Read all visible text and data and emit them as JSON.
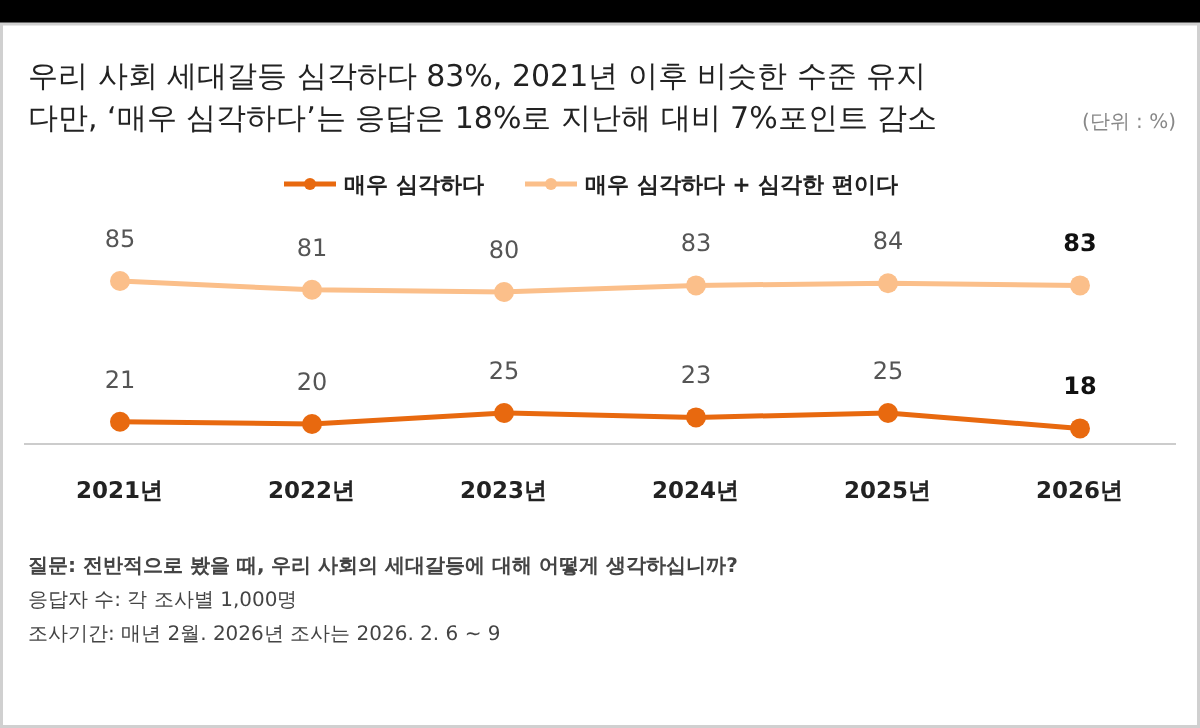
{
  "chart_data": {
    "type": "line",
    "title": "우리 사회 세대갈등 심각하다 83%, 2021년 이후 비슷한 수준 유지",
    "subtitle": "다만, ‘매우 심각하다’는 응답은 18%로 지난해 대비 7%포인트 감소",
    "categories": [
      "2021년",
      "2022년",
      "2023년",
      "2024년",
      "2025년",
      "2026년"
    ],
    "series": [
      {
        "name": "매우 심각하다",
        "color": "#e8690f",
        "values": [
          21,
          20,
          25,
          23,
          25,
          18
        ]
      },
      {
        "name": "매우 심각하다 + 심각한 편이다",
        "color": "#fbbf8a",
        "values": [
          85,
          81,
          80,
          83,
          84,
          83
        ]
      }
    ],
    "data_labels": true,
    "legend": "top",
    "marker": "circle",
    "line_style": "solid",
    "annotations": [
      "(단위 : %)",
      "질문: 전반적으로 봤을 때, 우리 사회의 세대갈등에 대해 어떻게 생각하십니까?",
      "응답자 수: 각 조사별 1,000명",
      "조사기간: 매년 2월. 2026년 조사는 2026. 2. 6 ~ 9"
    ]
  }
}
